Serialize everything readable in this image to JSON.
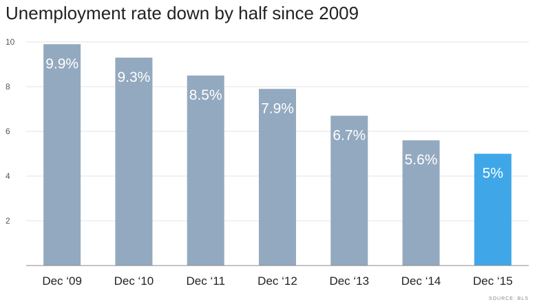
{
  "chart_data": {
    "type": "bar",
    "title": "Unemployment rate down by half since 2009",
    "categories": [
      "Dec ‘09",
      "Dec ‘10",
      "Dec ‘11",
      "Dec ‘12",
      "Dec ‘13",
      "Dec ‘14",
      "Dec ‘15"
    ],
    "values": [
      9.9,
      9.3,
      8.5,
      7.9,
      6.7,
      5.6,
      5.0
    ],
    "data_labels": [
      "9.9%",
      "9.3%",
      "8.5%",
      "7.9%",
      "6.7%",
      "5.6%",
      "5%"
    ],
    "yticks": [
      2,
      4,
      6,
      8,
      10
    ],
    "ylim": [
      0,
      10
    ],
    "grid": true,
    "xlabel": "",
    "ylabel": "",
    "bar_color": "#93a9bf",
    "highlight_color": "#3fa7e8",
    "highlight_index": 6,
    "source": "SOURCE: BLS"
  }
}
